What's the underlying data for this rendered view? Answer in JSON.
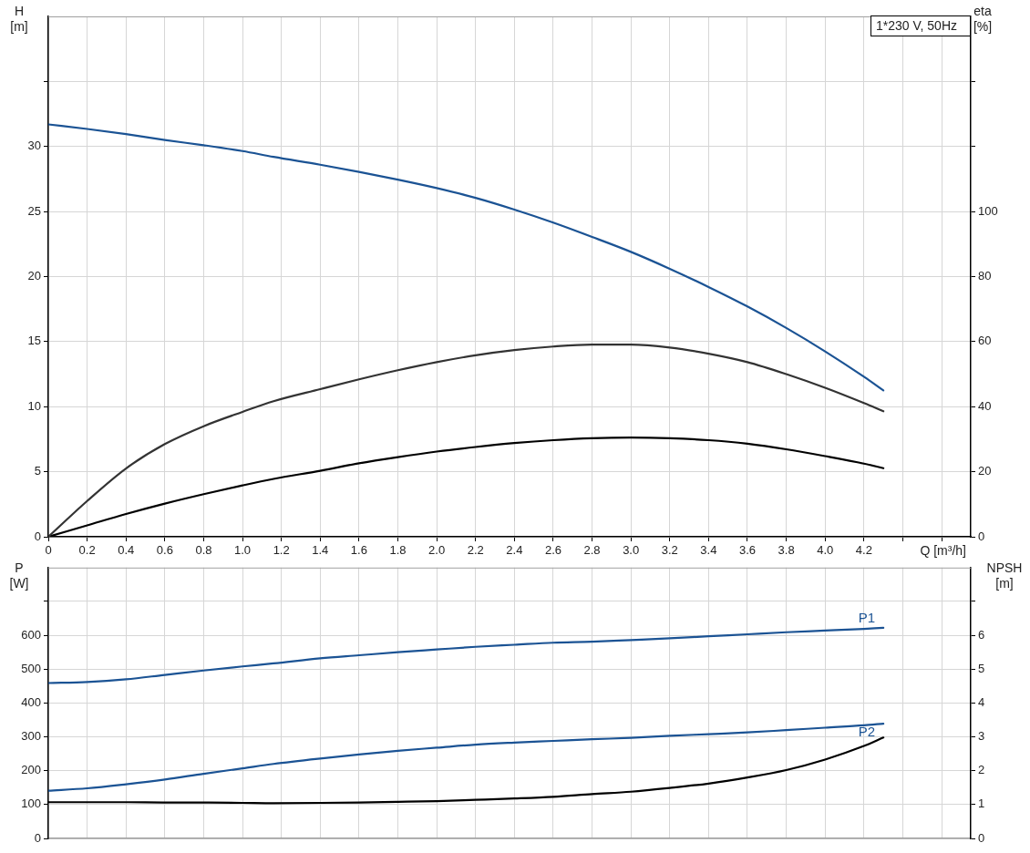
{
  "chart_data": [
    {
      "type": "line",
      "title": "1*230 V, 50Hz",
      "xlabel": "Q [m³/h]",
      "ylabel": "H [m]",
      "y2label": "eta [%]",
      "x": [
        0,
        0.2,
        0.4,
        0.6,
        0.8,
        1.0,
        1.16,
        1.4,
        1.6,
        1.8,
        2.0,
        2.2,
        2.4,
        2.6,
        2.8,
        3.0,
        3.2,
        3.4,
        3.6,
        3.8,
        4.0,
        4.2,
        4.3
      ],
      "series": [
        {
          "color": "#1b5394",
          "values": [
            31.7,
            31.35,
            30.95,
            30.5,
            30.1,
            29.65,
            29.2,
            28.6,
            28.05,
            27.45,
            26.8,
            26.05,
            25.15,
            24.15,
            23.05,
            21.9,
            20.6,
            19.2,
            17.7,
            16.05,
            14.25,
            12.3,
            11.25
          ]
        },
        {
          "color": "#333333",
          "axis": "y2",
          "values": [
            0,
            11,
            21,
            28.5,
            34,
            38.4,
            41.7,
            45.4,
            48.4,
            51.2,
            53.7,
            55.8,
            57.4,
            58.5,
            59.1,
            59.1,
            58.2,
            56.3,
            53.7,
            50,
            45.8,
            41.1,
            38.6
          ]
        },
        {
          "color": "#000000",
          "axis": "y2",
          "values": [
            0,
            3.5,
            7,
            10.2,
            13.1,
            15.8,
            17.8,
            20.3,
            22.6,
            24.5,
            26.2,
            27.6,
            28.8,
            29.7,
            30.3,
            30.5,
            30.3,
            29.7,
            28.6,
            26.9,
            24.8,
            22.5,
            21.1
          ]
        }
      ],
      "xlim": [
        0,
        4.75
      ],
      "xticks": [
        0,
        0.2,
        0.4,
        0.6,
        0.8,
        {
          "value": 1,
          "label": "1.0"
        },
        1.2,
        1.4,
        1.6,
        1.8,
        {
          "value": 2,
          "label": "2.0"
        },
        2.2,
        2.4,
        2.6,
        2.8,
        {
          "value": 3,
          "label": "3.0"
        },
        3.2,
        3.4,
        3.6,
        3.8,
        {
          "value": 4,
          "label": "4.0"
        },
        4.2,
        {
          "value": 4.4,
          "label": null
        },
        {
          "value": 4.6,
          "label": null
        }
      ],
      "ylim": [
        0,
        40
      ],
      "yticks": [
        0,
        5,
        10,
        15,
        20,
        25,
        30,
        {
          "value": 35,
          "label": null
        }
      ],
      "y2lim": [
        0,
        160
      ],
      "y2ticks": [
        0,
        20,
        40,
        60,
        80,
        100,
        {
          "value": 120,
          "label": null
        },
        {
          "value": 140,
          "label": null
        }
      ],
      "grid": true,
      "legend": false
    },
    {
      "type": "line",
      "ylabel": "P [W]",
      "y2label": "NPSH [m]",
      "x": [
        0,
        0.2,
        0.4,
        0.6,
        0.8,
        1.0,
        1.16,
        1.4,
        1.6,
        1.8,
        2.0,
        2.2,
        2.4,
        2.6,
        2.8,
        3.0,
        3.2,
        3.4,
        3.6,
        3.8,
        4.0,
        4.2,
        4.3
      ],
      "series": [
        {
          "name": "P1",
          "color": "#1b5394",
          "values": [
            459,
            462,
            470,
            483,
            496,
            508,
            517,
            532,
            541,
            550,
            558,
            566,
            572,
            578,
            581,
            586,
            591,
            597,
            603,
            609,
            614,
            619,
            622
          ]
        },
        {
          "name": "P2",
          "color": "#1b5394",
          "values": [
            141,
            148,
            160,
            174,
            191,
            207,
            220,
            236,
            248,
            259,
            268,
            277,
            283,
            288,
            293,
            297,
            303,
            308,
            313,
            320,
            327,
            334,
            339
          ]
        },
        {
          "color": "#000000",
          "axis": "y2",
          "values": [
            1.07,
            1.07,
            1.07,
            1.06,
            1.06,
            1.05,
            1.04,
            1.05,
            1.06,
            1.08,
            1.1,
            1.14,
            1.18,
            1.23,
            1.31,
            1.38,
            1.49,
            1.62,
            1.8,
            2.02,
            2.33,
            2.73,
            2.98
          ]
        }
      ],
      "xlim": [
        0,
        4.75
      ],
      "xticks": [
        0,
        0.2,
        0.4,
        0.6,
        0.8,
        1,
        1.2,
        1.4,
        1.6,
        1.8,
        2,
        2.2,
        2.4,
        2.6,
        2.8,
        3,
        3.2,
        3.4,
        3.6,
        3.8,
        4,
        4.2,
        4.4,
        4.6
      ],
      "ylim": [
        0,
        800
      ],
      "yticks": [
        0,
        100,
        200,
        300,
        400,
        500,
        600,
        {
          "value": 700,
          "label": null
        }
      ],
      "y2lim": [
        0,
        8
      ],
      "y2ticks": [
        0,
        1,
        2,
        3,
        4,
        5,
        6,
        {
          "value": 7,
          "label": null
        }
      ],
      "tick_labels": "y",
      "grid": true,
      "legend": false
    }
  ]
}
